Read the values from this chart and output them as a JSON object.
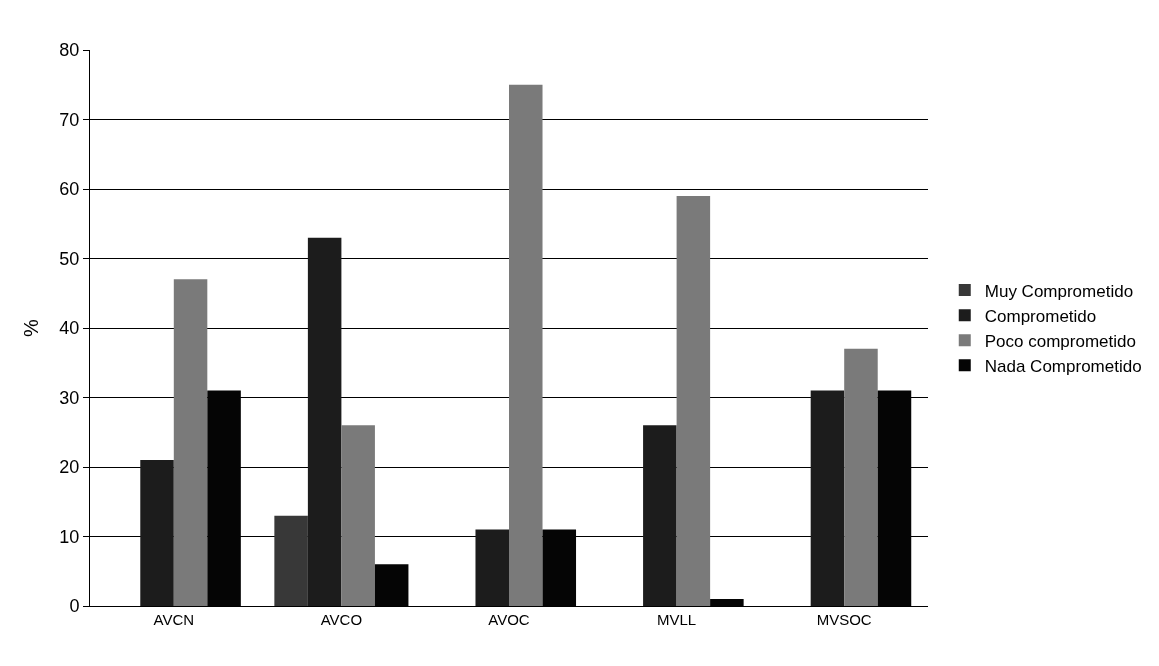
{
  "chart_data": {
    "type": "bar",
    "ylabel": "%",
    "categories": [
      "AVCN",
      "AVCO",
      "AVOC",
      "MVLL",
      "MVSOC"
    ],
    "series": [
      {
        "name": "Muy Comprometido",
        "color": "#383838",
        "values": [
          0,
          13,
          0,
          0,
          0
        ]
      },
      {
        "name": "Comprometido",
        "color": "#1c1c1c",
        "values": [
          21,
          53,
          11,
          26,
          31
        ]
      },
      {
        "name": "Poco comprometido",
        "color": "#7a7a7a",
        "values": [
          47,
          26,
          75,
          59,
          37
        ]
      },
      {
        "name": "Nada Comprometido",
        "color": "#050505",
        "values": [
          31,
          6,
          11,
          1,
          31
        ]
      }
    ],
    "ylim": [
      0,
      80
    ],
    "yticks": [
      0,
      10,
      20,
      30,
      40,
      50,
      60,
      70,
      80
    ],
    "grid": "y",
    "legend": "right"
  }
}
